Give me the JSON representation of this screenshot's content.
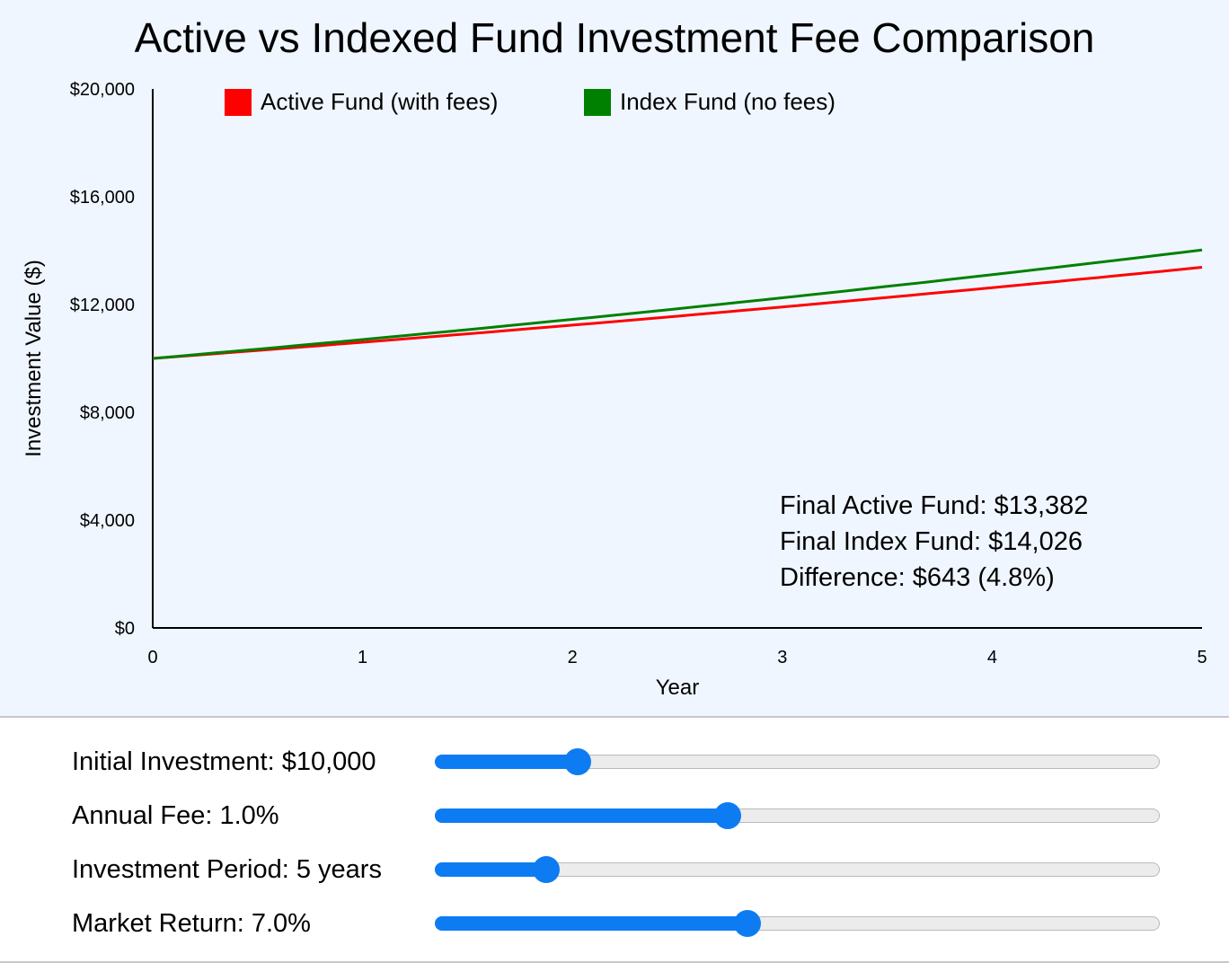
{
  "chart_data": {
    "type": "line",
    "title": "Active vs Indexed Fund Investment Fee Comparison",
    "xlabel": "Year",
    "ylabel": "Investment Value ($)",
    "xlim": [
      0,
      5
    ],
    "ylim": [
      0,
      20000
    ],
    "x_ticks": [
      "0",
      "1",
      "2",
      "3",
      "4",
      "5"
    ],
    "y_ticks": [
      "$0",
      "$4,000",
      "$8,000",
      "$12,000",
      "$16,000",
      "$20,000"
    ],
    "grid": false,
    "legend_position": "top-left",
    "x": [
      0,
      1,
      2,
      3,
      4,
      5
    ],
    "series": [
      {
        "name": "Active Fund (with fees)",
        "color": "#ff0000",
        "values": [
          10000,
          10600,
          11236,
          11910,
          12625,
          13382
        ]
      },
      {
        "name": "Index Fund (no fees)",
        "color": "#008000",
        "values": [
          10000,
          10700,
          11449,
          12250,
          13108,
          14026
        ]
      }
    ],
    "annotations": [
      "Final Active Fund: $13,382",
      "Final Index Fund: $14,026",
      "Difference: $643 (4.8%)"
    ]
  },
  "controls": [
    {
      "label": "Initial Investment: $10,000",
      "fraction": 0.196,
      "name": "initial-investment-slider"
    },
    {
      "label": "Annual Fee: 1.0%",
      "fraction": 0.403,
      "name": "annual-fee-slider"
    },
    {
      "label": "Investment Period: 5 years",
      "fraction": 0.152,
      "name": "investment-period-slider"
    },
    {
      "label": "Market Return: 7.0%",
      "fraction": 0.43,
      "name": "market-return-slider"
    }
  ]
}
